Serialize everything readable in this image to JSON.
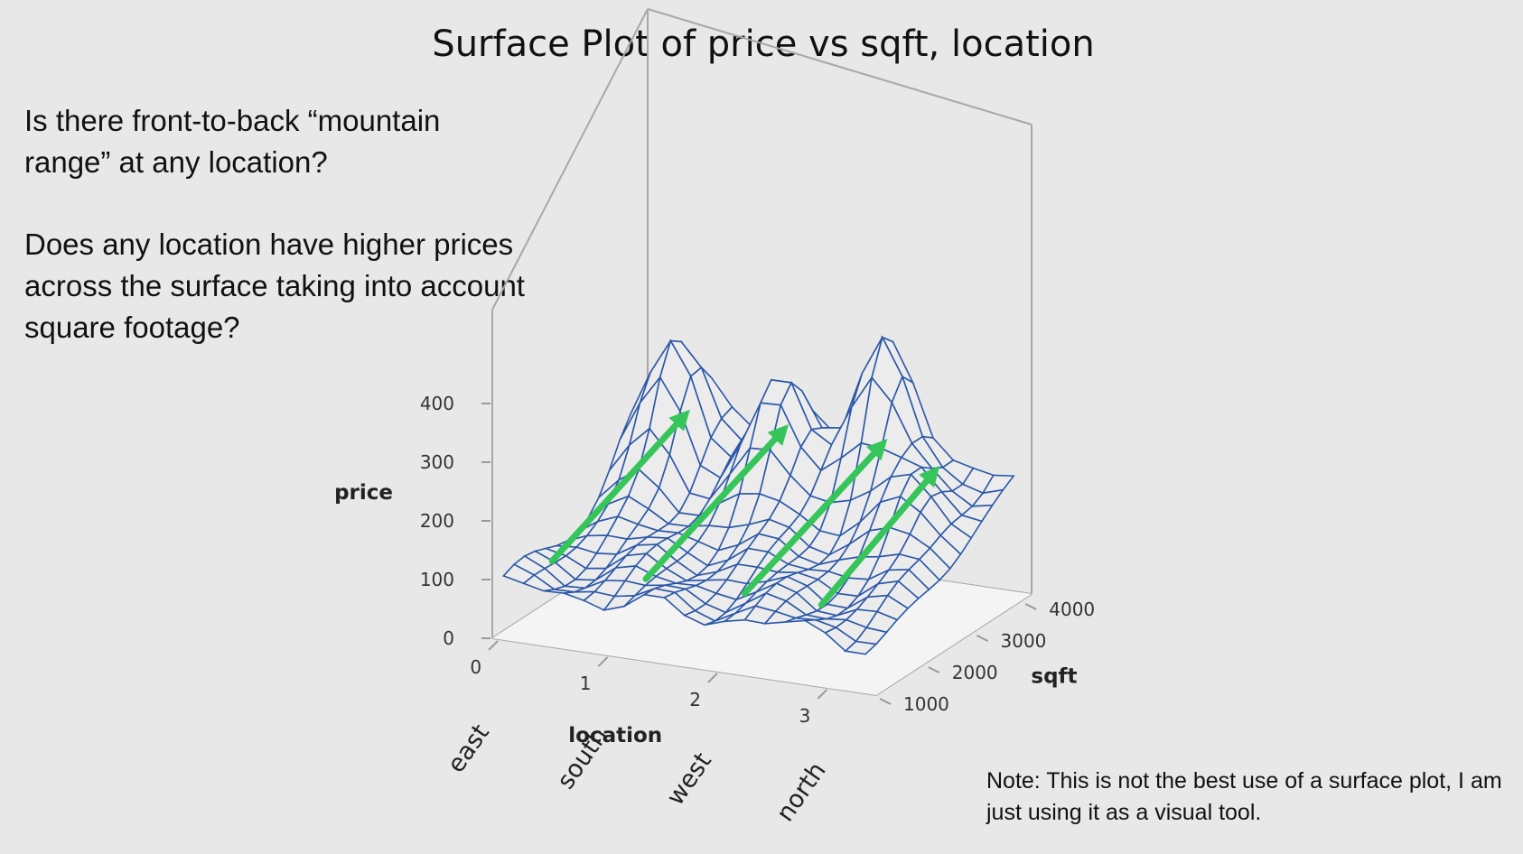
{
  "title": "Surface Plot of price vs sqft, location",
  "questions": {
    "q1": "Is there front-to-back “mountain range” at any location?",
    "q2": "Does any location have higher prices across the surface taking into account square footage?"
  },
  "note": "Note: This is not the best use of a surface plot, I am just using it as a visual tool.",
  "chart_data": {
    "type": "surface",
    "title": "Surface Plot of price vs sqft, location",
    "x_axis": {
      "label": "location",
      "ticks": [
        "0",
        "1",
        "2",
        "3"
      ],
      "range": [
        0,
        3.5
      ]
    },
    "y_axis": {
      "label": "sqft",
      "ticks": [
        "1000",
        "2000",
        "3000",
        "4000"
      ],
      "range": [
        1000,
        4200
      ]
    },
    "z_axis": {
      "label": "price",
      "ticks": [
        "0",
        "100",
        "200",
        "300",
        "400"
      ],
      "range": [
        0,
        400
      ]
    },
    "category_labels": [
      "east",
      "south",
      "west",
      "north"
    ],
    "surface_color": "#2b57a7",
    "arrow_color": "#36c55a",
    "arrows": [
      {
        "location": 0.5,
        "from_sqft": 1100,
        "to_sqft": 3800
      },
      {
        "location": 1.4,
        "from_sqft": 1000,
        "to_sqft": 3800
      },
      {
        "location": 2.3,
        "from_sqft": 1000,
        "to_sqft": 3800
      },
      {
        "location": 3.0,
        "from_sqft": 1000,
        "to_sqft": 3300
      }
    ]
  }
}
